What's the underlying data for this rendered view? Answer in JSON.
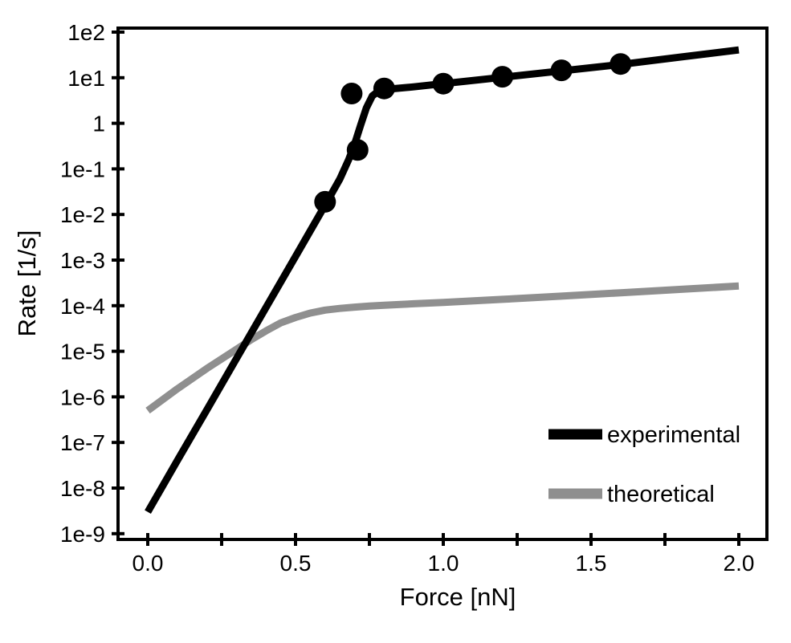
{
  "chart_data": {
    "type": "line",
    "title": "",
    "xlabel": "Force [nN]",
    "ylabel": "Rate [1/s]",
    "grid": false,
    "x_axis": {
      "label": "Force [nN]",
      "tick_labels": [
        "0.0",
        "0.5",
        "1.0",
        "1.5",
        "2.0"
      ],
      "tick_values": [
        0.0,
        0.5,
        1.0,
        1.5,
        2.0
      ],
      "minor_tick_values": [
        0.25,
        0.75,
        1.25,
        1.75
      ],
      "range": [
        -0.1,
        2.1
      ]
    },
    "y_axis": {
      "label": "Rate [1/s]",
      "scale": "log",
      "tick_labels": [
        "1e2",
        "1e1",
        "1",
        "1e-1",
        "1e-2",
        "1e-3",
        "1e-4",
        "1e-5",
        "1e-6",
        "1e-7",
        "1e-8",
        "1e-9"
      ],
      "tick_values": [
        100,
        10,
        1,
        0.1,
        0.01,
        0.001,
        0.0001,
        1e-05,
        1e-06,
        1e-07,
        1e-08,
        1e-09
      ],
      "range": [
        7.5e-10,
        122
      ]
    },
    "legend": {
      "position": "lower right",
      "entries": [
        {
          "label": "experimental",
          "color": "#000000"
        },
        {
          "label": "theoretical",
          "color": "#8f8f8f"
        }
      ]
    },
    "series": [
      {
        "name": "experimental",
        "color": "#000000",
        "style": "line+markers",
        "line": [
          [
            0.0,
            3e-09
          ],
          [
            0.1,
            4e-08
          ],
          [
            0.2,
            5.2e-07
          ],
          [
            0.3,
            6.9e-06
          ],
          [
            0.4,
            9.1e-05
          ],
          [
            0.5,
            0.0012
          ],
          [
            0.6,
            0.016
          ],
          [
            0.65,
            0.06
          ],
          [
            0.68,
            0.16
          ],
          [
            0.7,
            0.35
          ],
          [
            0.72,
            0.9
          ],
          [
            0.74,
            2.2
          ],
          [
            0.76,
            4.0
          ],
          [
            0.78,
            5.0
          ],
          [
            0.8,
            5.5
          ],
          [
            0.9,
            6.3
          ],
          [
            1.0,
            7.4
          ],
          [
            1.2,
            10.2
          ],
          [
            1.4,
            14.1
          ],
          [
            1.6,
            19.5
          ],
          [
            1.8,
            28.2
          ],
          [
            2.0,
            40.7
          ]
        ],
        "points": [
          [
            0.6,
            0.019
          ],
          [
            0.69,
            4.5
          ],
          [
            0.71,
            0.26
          ],
          [
            0.8,
            5.8
          ],
          [
            1.0,
            7.4
          ],
          [
            1.2,
            10.5
          ],
          [
            1.4,
            14.5
          ],
          [
            1.6,
            20.0
          ]
        ]
      },
      {
        "name": "theoretical",
        "color": "#8f8f8f",
        "style": "line",
        "line": [
          [
            0.0,
            5e-07
          ],
          [
            0.1,
            1.5e-06
          ],
          [
            0.2,
            4.2e-06
          ],
          [
            0.3,
            1.1e-05
          ],
          [
            0.35,
            1.8e-05
          ],
          [
            0.4,
            2.8e-05
          ],
          [
            0.45,
            4.2e-05
          ],
          [
            0.5,
            5.5e-05
          ],
          [
            0.55,
            6.9e-05
          ],
          [
            0.6,
            8e-05
          ],
          [
            0.65,
            8.7e-05
          ],
          [
            0.7,
            9.3e-05
          ],
          [
            0.75,
            9.8e-05
          ],
          [
            0.8,
            0.000102
          ],
          [
            0.9,
            0.00011
          ],
          [
            1.0,
            0.000118
          ],
          [
            1.2,
            0.000138
          ],
          [
            1.4,
            0.000162
          ],
          [
            1.6,
            0.000192
          ],
          [
            1.8,
            0.000228
          ],
          [
            2.0,
            0.00027
          ]
        ]
      }
    ]
  }
}
